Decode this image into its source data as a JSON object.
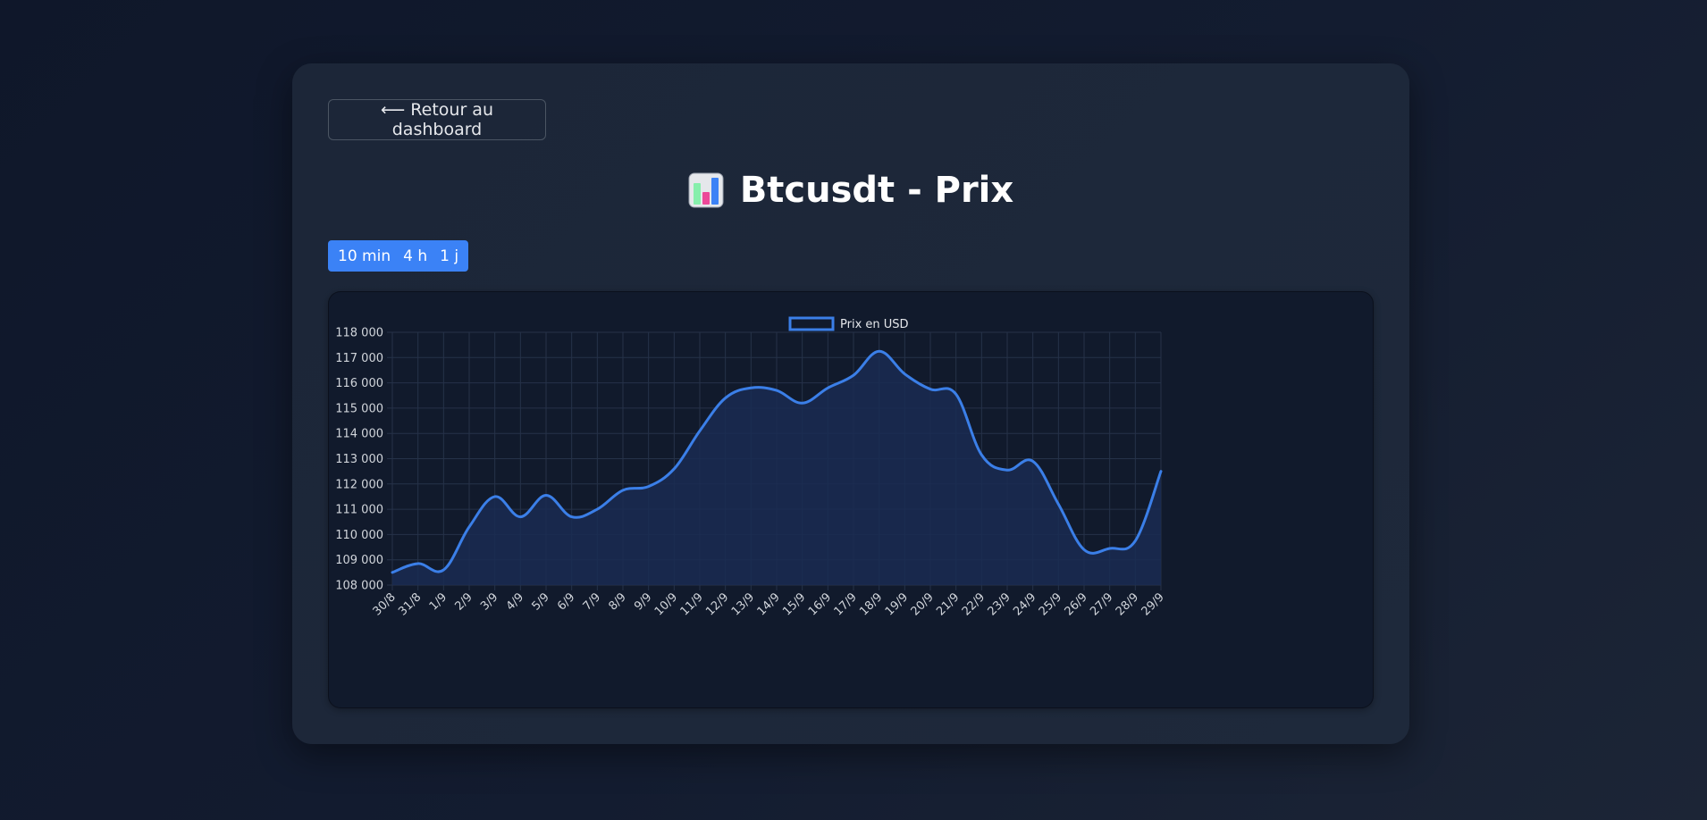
{
  "back_button": {
    "label": "⟵ Retour au dashboard"
  },
  "page": {
    "title": "Btcusdt - Prix",
    "title_icon": "bar-chart-icon"
  },
  "timeframes": [
    {
      "label": "10 min",
      "active": true
    },
    {
      "label": "4 h",
      "active": false
    },
    {
      "label": "1 j",
      "active": false
    }
  ],
  "colors": {
    "accent": "#3b82f6",
    "line": "#3b7fe8",
    "fill": "#1a2b52"
  },
  "chart_data": {
    "type": "line",
    "title": "",
    "xlabel": "",
    "ylabel": "",
    "legend": {
      "position": "top-center",
      "label": "Prix en USD"
    },
    "grid": true,
    "ylim": [
      108000,
      118000
    ],
    "yticks": [
      "118 000",
      "117 000",
      "116 000",
      "115 000",
      "114 000",
      "113 000",
      "112 000",
      "111 000",
      "110 000",
      "109 000",
      "108 000"
    ],
    "x": [
      "30/8",
      "31/8",
      "1/9",
      "2/9",
      "3/9",
      "4/9",
      "5/9",
      "6/9",
      "7/9",
      "8/9",
      "9/9",
      "10/9",
      "11/9",
      "12/9",
      "13/9",
      "14/9",
      "15/9",
      "16/9",
      "17/9",
      "18/9",
      "19/9",
      "20/9",
      "21/9",
      "22/9",
      "23/9",
      "24/9",
      "25/9",
      "26/9",
      "27/9",
      "28/9",
      "29/9"
    ],
    "series": [
      {
        "name": "Prix en USD",
        "values": [
          108500,
          108850,
          108600,
          110300,
          111500,
          110700,
          111550,
          110700,
          111000,
          111750,
          111900,
          112600,
          114100,
          115400,
          115800,
          115700,
          115200,
          115800,
          116300,
          117250,
          116350,
          115750,
          115550,
          113150,
          112550,
          112900,
          111200,
          109400,
          109450,
          109750,
          112500
        ]
      }
    ]
  }
}
